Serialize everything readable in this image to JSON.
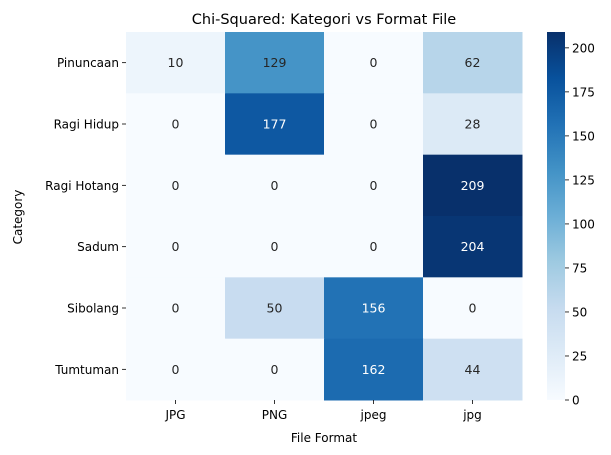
{
  "chart_data": {
    "type": "heatmap",
    "title": "Chi-Squared: Kategori vs Format File",
    "xlabel": "File Format",
    "ylabel": "Category",
    "x_categories": [
      "JPG",
      "PNG",
      "jpeg",
      "jpg"
    ],
    "y_categories": [
      "Pinuncaan",
      "Ragi Hidup",
      "Ragi Hotang",
      "Sadum",
      "Sibolang",
      "Tumtuman"
    ],
    "values": [
      [
        10,
        129,
        0,
        62
      ],
      [
        0,
        177,
        0,
        28
      ],
      [
        0,
        0,
        0,
        209
      ],
      [
        0,
        0,
        0,
        204
      ],
      [
        0,
        50,
        156,
        0
      ],
      [
        0,
        0,
        162,
        44
      ]
    ],
    "colormap": "Blues",
    "colorbar": {
      "range": [
        0,
        209
      ],
      "ticks": [
        0,
        25,
        50,
        75,
        100,
        125,
        150,
        175,
        200
      ]
    },
    "grid": false
  }
}
